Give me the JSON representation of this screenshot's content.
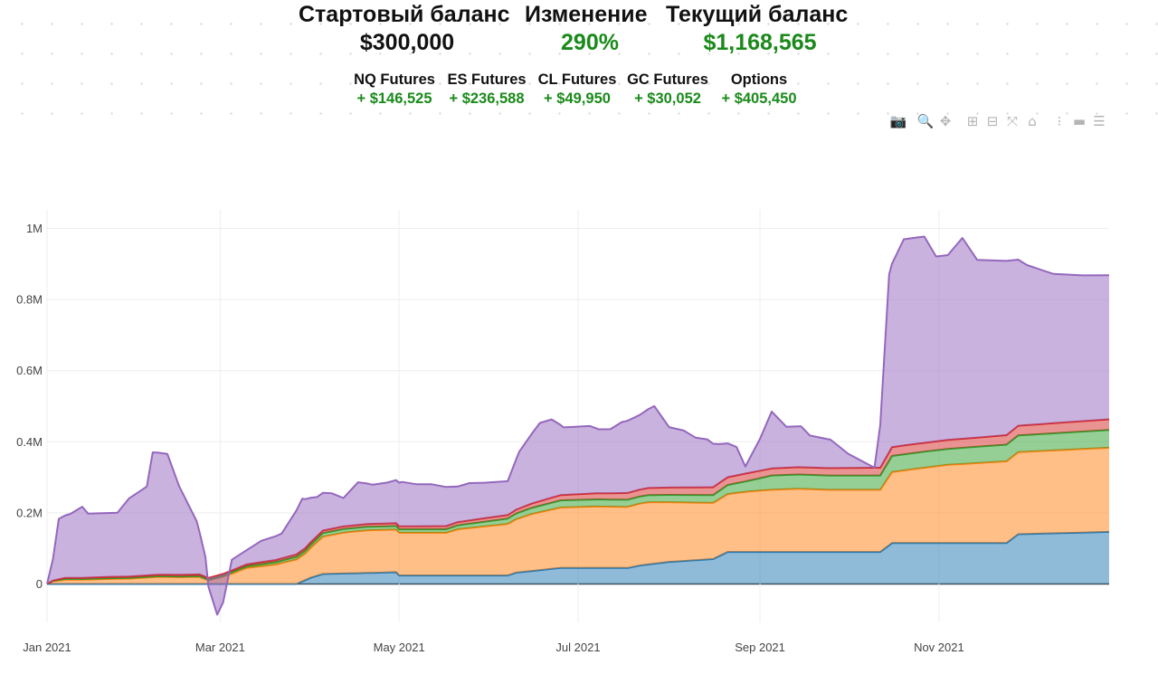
{
  "header": {
    "start_label": "Стартовый баланс",
    "start_value": "$300,000",
    "change_label": "Изменение",
    "change_value": "290%",
    "current_label": "Текущий баланс",
    "current_value": "$1,168,565",
    "value_color": "#1a8a1a"
  },
  "breakdown": [
    {
      "name": "NQ Futures",
      "value": "+ $146,525"
    },
    {
      "name": "ES Futures",
      "value": "+ $236,588"
    },
    {
      "name": "CL Futures",
      "value": "+ $49,950"
    },
    {
      "name": "GC Futures",
      "value": "+ $30,052"
    },
    {
      "name": "Options",
      "value": "+ $405,450"
    }
  ],
  "modebar": [
    {
      "icon": "camera-icon",
      "glyph": "📷"
    },
    {
      "icon": "zoom-icon",
      "glyph": "🔍"
    },
    {
      "icon": "pan-icon",
      "glyph": "✥"
    },
    {
      "icon": "zoom-in-icon",
      "glyph": "⊞"
    },
    {
      "icon": "zoom-out-icon",
      "glyph": "⊟"
    },
    {
      "icon": "autoscale-icon",
      "glyph": "⤧"
    },
    {
      "icon": "reset-axes-icon",
      "glyph": "⌂"
    },
    {
      "icon": "spike-lines-icon",
      "glyph": "⁝"
    },
    {
      "icon": "hover-closest-icon",
      "glyph": "▬"
    },
    {
      "icon": "hover-compare-icon",
      "glyph": "☰"
    }
  ],
  "chart_data": {
    "type": "area",
    "stacked": true,
    "x_ticks": [
      "Jan 2021",
      "Mar 2021",
      "May 2021",
      "Jul 2021",
      "Sep 2021",
      "Nov 2021"
    ],
    "y_ticks": [
      "0",
      "0.2M",
      "0.4M",
      "0.6M",
      "0.8M",
      "1M"
    ],
    "ylim": [
      -95000,
      1040000
    ],
    "grid": true,
    "legend": "none",
    "colors": {
      "NQ": "#1f77b4",
      "ES": "#ff7f0e",
      "CL": "#2ca02c",
      "GC": "#d62728",
      "Options": "#9467bd"
    },
    "series": [
      {
        "key": "NQ",
        "points": [
          [
            "2021-01-01",
            0
          ],
          [
            "2021-02-25",
            0
          ],
          [
            "2021-03-27",
            0
          ],
          [
            "2021-04-01",
            18000
          ],
          [
            "2021-04-05",
            28000
          ],
          [
            "2021-04-30",
            33000
          ],
          [
            "2021-05-01",
            24000
          ],
          [
            "2021-06-07",
            24000
          ],
          [
            "2021-06-10",
            32000
          ],
          [
            "2021-06-25",
            45000
          ],
          [
            "2021-07-18",
            45000
          ],
          [
            "2021-07-22",
            52000
          ],
          [
            "2021-08-01",
            62000
          ],
          [
            "2021-08-16",
            70000
          ],
          [
            "2021-08-21",
            90000
          ],
          [
            "2021-10-12",
            90000
          ],
          [
            "2021-10-16",
            115000
          ],
          [
            "2021-11-24",
            115000
          ],
          [
            "2021-11-28",
            140000
          ],
          [
            "2021-12-29",
            146525
          ]
        ]
      },
      {
        "key": "ES",
        "points": [
          [
            "2021-01-01",
            0
          ],
          [
            "2021-01-03",
            8000
          ],
          [
            "2021-01-07",
            12000
          ],
          [
            "2021-01-13",
            12000
          ],
          [
            "2021-01-21",
            14000
          ],
          [
            "2021-01-29",
            15000
          ],
          [
            "2021-02-08",
            20000
          ],
          [
            "2021-02-15",
            19000
          ],
          [
            "2021-02-22",
            20000
          ],
          [
            "2021-02-25",
            10000
          ],
          [
            "2021-03-02",
            20000
          ],
          [
            "2021-03-10",
            45000
          ],
          [
            "2021-03-20",
            55000
          ],
          [
            "2021-03-30",
            75000
          ],
          [
            "2021-04-05",
            105000
          ],
          [
            "2021-04-12",
            115000
          ],
          [
            "2021-04-20",
            120000
          ],
          [
            "2021-04-30",
            120000
          ],
          [
            "2021-05-17",
            120000
          ],
          [
            "2021-05-21",
            130000
          ],
          [
            "2021-06-07",
            145000
          ],
          [
            "2021-06-15",
            160000
          ],
          [
            "2021-06-25",
            170000
          ],
          [
            "2021-07-07",
            173000
          ],
          [
            "2021-07-17",
            172000
          ],
          [
            "2021-07-25",
            175000
          ],
          [
            "2021-08-01",
            168000
          ],
          [
            "2021-08-16",
            158000
          ],
          [
            "2021-08-28",
            170000
          ],
          [
            "2021-09-05",
            175000
          ],
          [
            "2021-09-14",
            178000
          ],
          [
            "2021-09-24",
            175000
          ],
          [
            "2021-10-12",
            175000
          ],
          [
            "2021-10-16",
            200000
          ],
          [
            "2021-10-25",
            210000
          ],
          [
            "2021-11-04",
            220000
          ],
          [
            "2021-11-24",
            230000
          ],
          [
            "2021-12-29",
            236588
          ]
        ]
      },
      {
        "key": "CL",
        "points": [
          [
            "2021-01-01",
            0
          ],
          [
            "2021-01-07",
            2000
          ],
          [
            "2021-02-25",
            2000
          ],
          [
            "2021-03-10",
            5000
          ],
          [
            "2021-03-30",
            8000
          ],
          [
            "2021-04-05",
            10000
          ],
          [
            "2021-04-30",
            10000
          ],
          [
            "2021-05-17",
            10000
          ],
          [
            "2021-06-07",
            15000
          ],
          [
            "2021-06-25",
            20000
          ],
          [
            "2021-07-25",
            20000
          ],
          [
            "2021-08-16",
            22000
          ],
          [
            "2021-08-28",
            30000
          ],
          [
            "2021-09-05",
            40000
          ],
          [
            "2021-10-12",
            40000
          ],
          [
            "2021-10-16",
            45000
          ],
          [
            "2021-11-04",
            45000
          ],
          [
            "2021-12-29",
            49950
          ]
        ]
      },
      {
        "key": "GC",
        "points": [
          [
            "2021-01-01",
            0
          ],
          [
            "2021-01-07",
            3000
          ],
          [
            "2021-02-25",
            5000
          ],
          [
            "2021-03-10",
            5000
          ],
          [
            "2021-03-30",
            7000
          ],
          [
            "2021-04-30",
            8000
          ],
          [
            "2021-06-07",
            10000
          ],
          [
            "2021-06-25",
            15000
          ],
          [
            "2021-07-25",
            20000
          ],
          [
            "2021-08-16",
            22000
          ],
          [
            "2021-08-28",
            22000
          ],
          [
            "2021-09-05",
            20000
          ],
          [
            "2021-10-12",
            22000
          ],
          [
            "2021-10-16",
            25000
          ],
          [
            "2021-11-04",
            25000
          ],
          [
            "2021-12-29",
            30052
          ]
        ]
      },
      {
        "key": "Options",
        "points": [
          [
            "2021-01-01",
            0
          ],
          [
            "2021-01-03",
            60000
          ],
          [
            "2021-01-05",
            170000
          ],
          [
            "2021-01-09",
            180000
          ],
          [
            "2021-01-13",
            200000
          ],
          [
            "2021-01-15",
            180000
          ],
          [
            "2021-01-25",
            180000
          ],
          [
            "2021-01-29",
            220000
          ],
          [
            "2021-02-04",
            250000
          ],
          [
            "2021-02-06",
            345000
          ],
          [
            "2021-02-11",
            340000
          ],
          [
            "2021-02-15",
            250000
          ],
          [
            "2021-02-21",
            150000
          ],
          [
            "2021-02-24",
            55000
          ],
          [
            "2021-02-25",
            -25000
          ],
          [
            "2021-02-28",
            -110000
          ],
          [
            "2021-03-02",
            -80000
          ],
          [
            "2021-03-05",
            30000
          ],
          [
            "2021-03-10",
            40000
          ],
          [
            "2021-03-15",
            60000
          ],
          [
            "2021-03-22",
            70000
          ],
          [
            "2021-03-29",
            145000
          ],
          [
            "2021-04-03",
            110000
          ],
          [
            "2021-04-08",
            100000
          ],
          [
            "2021-04-12",
            80000
          ],
          [
            "2021-04-17",
            120000
          ],
          [
            "2021-04-22",
            110000
          ],
          [
            "2021-04-27",
            115000
          ],
          [
            "2021-05-02",
            125000
          ],
          [
            "2021-05-07",
            118000
          ],
          [
            "2021-05-12",
            118000
          ],
          [
            "2021-05-17",
            110000
          ],
          [
            "2021-05-21",
            100000
          ],
          [
            "2021-05-25",
            105000
          ],
          [
            "2021-05-30",
            100000
          ],
          [
            "2021-06-07",
            95000
          ],
          [
            "2021-06-11",
            160000
          ],
          [
            "2021-06-18",
            220000
          ],
          [
            "2021-06-22",
            220000
          ],
          [
            "2021-06-26",
            190000
          ],
          [
            "2021-07-05",
            190000
          ],
          [
            "2021-07-08",
            180000
          ],
          [
            "2021-07-12",
            180000
          ],
          [
            "2021-07-16",
            200000
          ],
          [
            "2021-07-22",
            210000
          ],
          [
            "2021-07-27",
            230000
          ],
          [
            "2021-08-01",
            170000
          ],
          [
            "2021-08-06",
            160000
          ],
          [
            "2021-08-10",
            140000
          ],
          [
            "2021-08-14",
            135000
          ],
          [
            "2021-08-18",
            110000
          ],
          [
            "2021-08-24",
            80000
          ],
          [
            "2021-08-27",
            20000
          ],
          [
            "2021-09-01",
            90000
          ],
          [
            "2021-09-05",
            160000
          ],
          [
            "2021-09-10",
            115000
          ],
          [
            "2021-09-15",
            115000
          ],
          [
            "2021-09-18",
            90000
          ],
          [
            "2021-09-25",
            80000
          ],
          [
            "2021-10-01",
            40000
          ],
          [
            "2021-10-10",
            0
          ],
          [
            "2021-10-12",
            120000
          ],
          [
            "2021-10-15",
            500000
          ],
          [
            "2021-10-20",
            580000
          ],
          [
            "2021-10-27",
            580000
          ],
          [
            "2021-10-31",
            520000
          ],
          [
            "2021-11-04",
            520000
          ],
          [
            "2021-11-09",
            565000
          ],
          [
            "2021-11-14",
            500000
          ],
          [
            "2021-11-24",
            490000
          ],
          [
            "2021-12-01",
            450000
          ],
          [
            "2021-12-10",
            420000
          ],
          [
            "2021-12-20",
            410000
          ],
          [
            "2021-12-29",
            405450
          ]
        ]
      }
    ]
  }
}
